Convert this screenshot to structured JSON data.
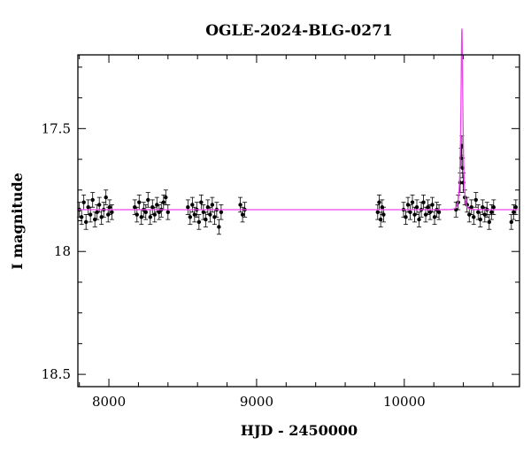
{
  "chart_data": {
    "type": "scatter",
    "title": "OGLE-2024-BLG-0271",
    "xlabel": "HJD - 2450000",
    "ylabel": "I magnitude",
    "xlim": [
      7790,
      10780
    ],
    "ylim": [
      18.55,
      17.2
    ],
    "y_inverted": true,
    "x_ticks": [
      "8000",
      "9000",
      "10000"
    ],
    "y_ticks": [
      "17.5",
      "18",
      "18.5"
    ],
    "grid": false,
    "legend": "none",
    "baseline_magnitude": 17.83,
    "colors": {
      "points": "#000000",
      "model": "#ee44ee"
    },
    "series": [
      {
        "values": [
          [
            7800,
            17.83,
            0.03
          ],
          [
            7815,
            17.86,
            0.03
          ],
          [
            7830,
            17.8,
            0.03
          ],
          [
            7845,
            17.88,
            0.03
          ],
          [
            7860,
            17.82,
            0.03
          ],
          [
            7875,
            17.85,
            0.03
          ],
          [
            7890,
            17.79,
            0.03
          ],
          [
            7905,
            17.87,
            0.03
          ],
          [
            7920,
            17.84,
            0.03
          ],
          [
            7935,
            17.81,
            0.03
          ],
          [
            7950,
            17.86,
            0.03
          ],
          [
            7965,
            17.83,
            0.03
          ],
          [
            7980,
            17.78,
            0.03
          ],
          [
            7995,
            17.85,
            0.03
          ],
          [
            8005,
            17.82,
            0.03
          ],
          [
            8020,
            17.84,
            0.03
          ],
          [
            8175,
            17.82,
            0.03
          ],
          [
            8190,
            17.85,
            0.03
          ],
          [
            8205,
            17.8,
            0.03
          ],
          [
            8220,
            17.86,
            0.03
          ],
          [
            8235,
            17.83,
            0.03
          ],
          [
            8250,
            17.84,
            0.03
          ],
          [
            8265,
            17.79,
            0.03
          ],
          [
            8280,
            17.86,
            0.03
          ],
          [
            8295,
            17.82,
            0.03
          ],
          [
            8310,
            17.85,
            0.03
          ],
          [
            8325,
            17.81,
            0.03
          ],
          [
            8340,
            17.84,
            0.03
          ],
          [
            8355,
            17.83,
            0.03
          ],
          [
            8370,
            17.8,
            0.03
          ],
          [
            8385,
            17.78,
            0.03
          ],
          [
            8400,
            17.84,
            0.03
          ],
          [
            8535,
            17.82,
            0.03
          ],
          [
            8550,
            17.86,
            0.03
          ],
          [
            8565,
            17.81,
            0.03
          ],
          [
            8580,
            17.85,
            0.03
          ],
          [
            8595,
            17.83,
            0.03
          ],
          [
            8610,
            17.88,
            0.03
          ],
          [
            8625,
            17.8,
            0.03
          ],
          [
            8640,
            17.84,
            0.03
          ],
          [
            8655,
            17.87,
            0.03
          ],
          [
            8670,
            17.82,
            0.03
          ],
          [
            8685,
            17.85,
            0.03
          ],
          [
            8700,
            17.81,
            0.03
          ],
          [
            8715,
            17.86,
            0.03
          ],
          [
            8730,
            17.83,
            0.03
          ],
          [
            8745,
            17.9,
            0.03
          ],
          [
            8760,
            17.84,
            0.03
          ],
          [
            8890,
            17.81,
            0.03
          ],
          [
            8905,
            17.85,
            0.03
          ],
          [
            8920,
            17.83,
            0.03
          ],
          [
            9820,
            17.84,
            0.03
          ],
          [
            9830,
            17.8,
            0.03
          ],
          [
            9840,
            17.87,
            0.03
          ],
          [
            9850,
            17.82,
            0.03
          ],
          [
            9860,
            17.85,
            0.03
          ],
          [
            9995,
            17.83,
            0.03
          ],
          [
            10010,
            17.86,
            0.03
          ],
          [
            10025,
            17.81,
            0.03
          ],
          [
            10040,
            17.84,
            0.03
          ],
          [
            10055,
            17.8,
            0.03
          ],
          [
            10070,
            17.85,
            0.03
          ],
          [
            10085,
            17.82,
            0.03
          ],
          [
            10100,
            17.87,
            0.03
          ],
          [
            10115,
            17.83,
            0.03
          ],
          [
            10130,
            17.8,
            0.03
          ],
          [
            10145,
            17.85,
            0.03
          ],
          [
            10160,
            17.82,
            0.03
          ],
          [
            10175,
            17.84,
            0.03
          ],
          [
            10190,
            17.81,
            0.03
          ],
          [
            10205,
            17.86,
            0.03
          ],
          [
            10220,
            17.83,
            0.03
          ],
          [
            10235,
            17.84,
            0.03
          ],
          [
            10350,
            17.83,
            0.03
          ],
          [
            10365,
            17.8,
            0.03
          ],
          [
            10378,
            17.72,
            0.04
          ],
          [
            10385,
            17.62,
            0.04
          ],
          [
            10390,
            17.57,
            0.04
          ],
          [
            10395,
            17.66,
            0.04
          ],
          [
            10400,
            17.72,
            0.04
          ],
          [
            10410,
            17.78,
            0.03
          ],
          [
            10425,
            17.81,
            0.03
          ],
          [
            10440,
            17.85,
            0.03
          ],
          [
            10455,
            17.82,
            0.03
          ],
          [
            10470,
            17.86,
            0.03
          ],
          [
            10485,
            17.79,
            0.03
          ],
          [
            10500,
            17.84,
            0.03
          ],
          [
            10515,
            17.87,
            0.03
          ],
          [
            10530,
            17.82,
            0.03
          ],
          [
            10545,
            17.85,
            0.03
          ],
          [
            10560,
            17.83,
            0.03
          ],
          [
            10575,
            17.88,
            0.03
          ],
          [
            10590,
            17.84,
            0.03
          ],
          [
            10605,
            17.82,
            0.03
          ],
          [
            10725,
            17.88,
            0.03
          ],
          [
            10740,
            17.84,
            0.03
          ],
          [
            10755,
            17.82,
            0.03
          ]
        ]
      }
    ]
  }
}
